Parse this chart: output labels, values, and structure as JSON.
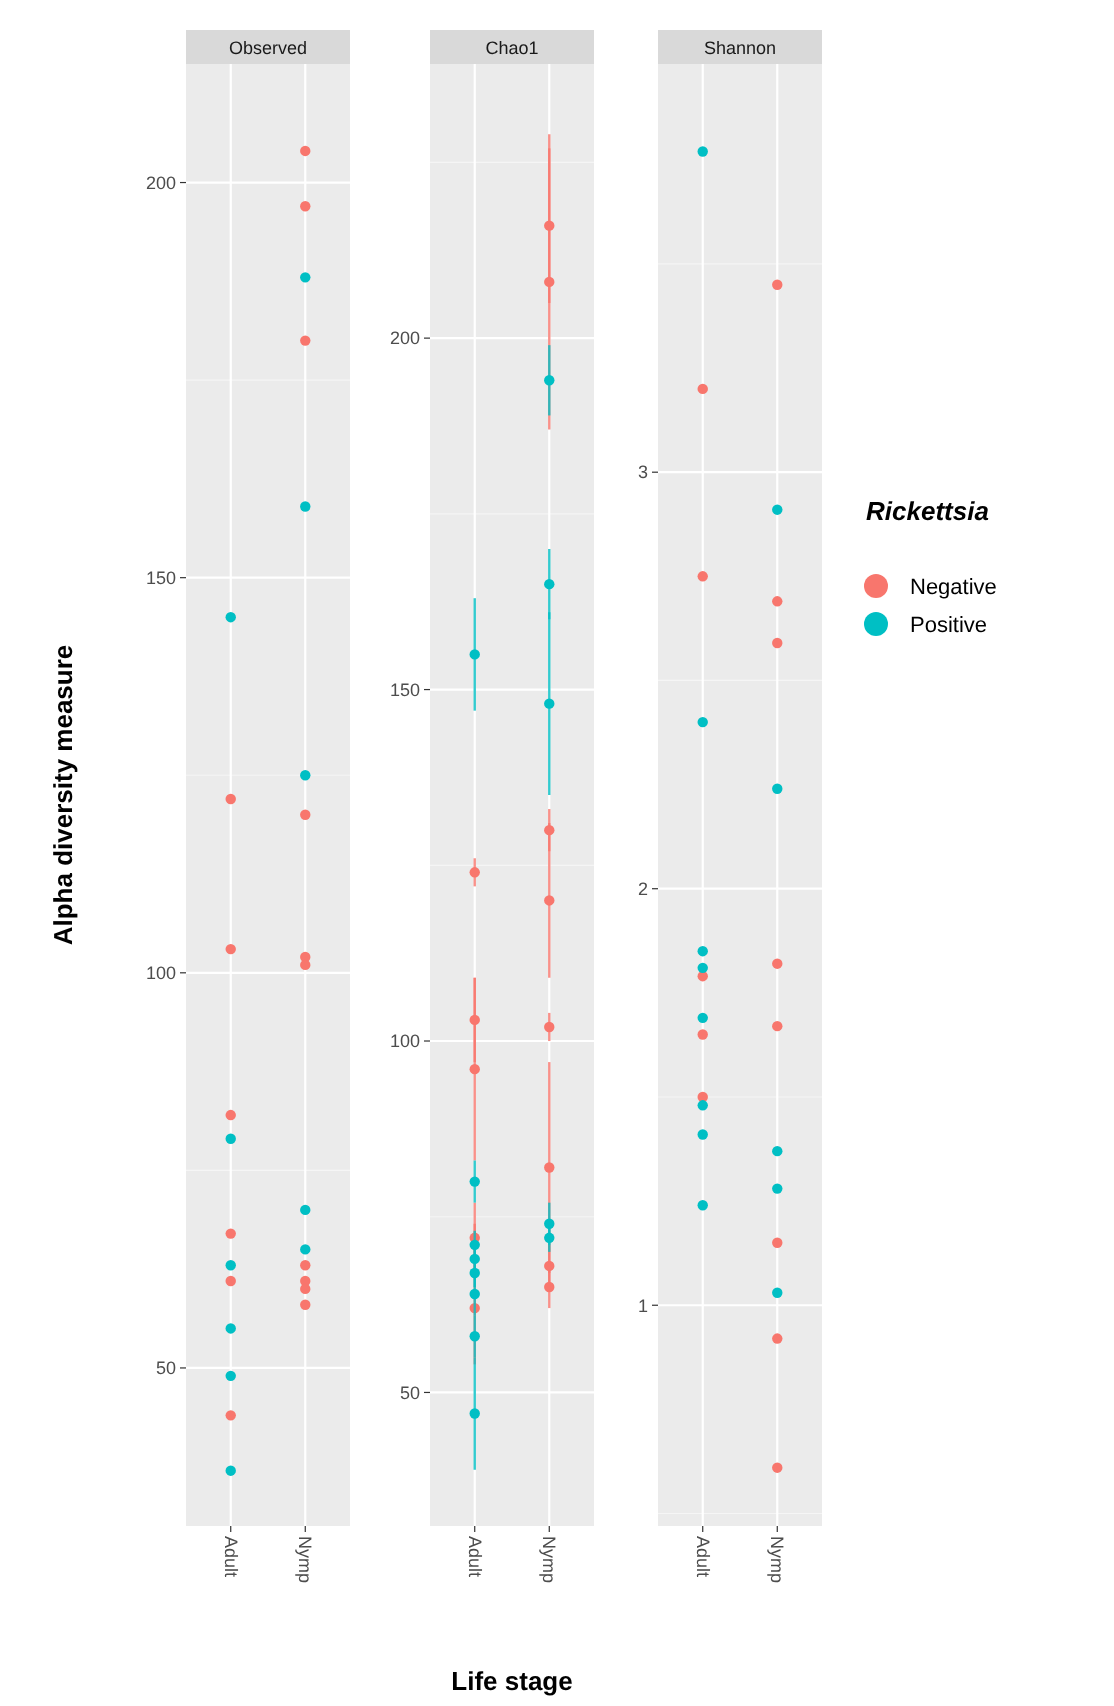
{
  "chart_data": [
    {
      "type": "scatter",
      "title": "Observed",
      "ylabel": "Alpha diversity measure",
      "categories": [
        "Adult",
        "Nymp"
      ],
      "ylim": [
        30,
        215
      ],
      "yticks": [
        50,
        100,
        150,
        200
      ],
      "grid": true,
      "marker": "circle",
      "legend": false,
      "series": [
        {
          "color": "#f8766d",
          "x": [
            "Adult",
            "Adult",
            "Adult",
            "Adult",
            "Adult",
            "Adult",
            "Nymp",
            "Nymp",
            "Nymp",
            "Nymp",
            "Nymp",
            "Nymp",
            "Nymp",
            "Nymp",
            "Nymp",
            "Nymp"
          ],
          "values": [
            122,
            103,
            82,
            67,
            61,
            44,
            204,
            197,
            180,
            120,
            102,
            101,
            63,
            61,
            58,
            60
          ]
        },
        {
          "color": "#00bfc4",
          "x": [
            "Adult",
            "Adult",
            "Adult",
            "Adult",
            "Adult",
            "Adult",
            "Nymp",
            "Nymp",
            "Nymp",
            "Nymp",
            "Nymp"
          ],
          "values": [
            145,
            79,
            63,
            55,
            49,
            37,
            188,
            159,
            125,
            70,
            65
          ]
        }
      ]
    },
    {
      "type": "scatter",
      "title": "Chao1",
      "xlabel": "Life stage",
      "categories": [
        "Adult",
        "Nymp"
      ],
      "ylim": [
        31,
        239
      ],
      "yticks": [
        50,
        100,
        150,
        200
      ],
      "grid": true,
      "marker": "circle",
      "legend": false,
      "series": [
        {
          "color": "#f8766d",
          "x": [
            "Adult",
            "Adult",
            "Adult",
            "Adult",
            "Adult",
            "Nymp",
            "Nymp",
            "Nymp",
            "Nymp",
            "Nymp",
            "Nymp",
            "Nymp",
            "Nymp"
          ],
          "values": [
            124,
            103,
            96,
            72,
            62,
            216,
            208,
            130,
            120,
            102,
            82,
            68,
            65
          ],
          "errors": [
            2,
            6,
            13,
            5,
            [
              54,
              74
            ],
            11,
            21,
            3,
            11,
            2,
            15,
            3,
            3
          ]
        },
        {
          "color": "#00bfc4",
          "x": [
            "Adult",
            "Adult",
            "Adult",
            "Adult",
            "Adult",
            "Adult",
            "Adult",
            "Adult",
            "Nymp",
            "Nymp",
            "Nymp",
            "Nymp",
            "Nymp"
          ],
          "values": [
            155,
            80,
            71,
            69,
            67,
            64,
            58,
            47,
            194,
            165,
            148,
            74,
            72
          ],
          "errors": [
            8,
            3,
            2,
            2,
            2,
            3,
            3,
            8,
            5,
            5,
            13,
            3,
            2
          ]
        }
      ]
    },
    {
      "type": "scatter",
      "title": "Shannon",
      "legend_title": "Rickettsia",
      "categories": [
        "Adult",
        "Nymp"
      ],
      "ylim": [
        0.47,
        3.98
      ],
      "yticks": [
        1,
        2,
        3
      ],
      "grid": true,
      "marker": "circle",
      "legend": "right",
      "series": [
        {
          "name": "Negative",
          "color": "#f8766d",
          "x": [
            "Adult",
            "Adult",
            "Adult",
            "Adult",
            "Adult",
            "Nymp",
            "Nymp",
            "Nymp",
            "Nymp",
            "Nymp",
            "Nymp",
            "Nymp",
            "Nymp"
          ],
          "values": [
            3.2,
            2.75,
            1.79,
            1.65,
            1.5,
            3.45,
            2.69,
            2.59,
            1.82,
            1.67,
            1.15,
            0.92,
            0.61
          ]
        },
        {
          "name": "Positive",
          "color": "#00bfc4",
          "x": [
            "Adult",
            "Adult",
            "Adult",
            "Adult",
            "Adult",
            "Adult",
            "Adult",
            "Adult",
            "Nymp",
            "Nymp",
            "Nymp",
            "Nymp",
            "Nymp"
          ],
          "values": [
            3.77,
            2.4,
            1.85,
            1.81,
            1.69,
            1.48,
            1.41,
            1.24,
            2.91,
            2.24,
            1.37,
            1.28,
            1.03
          ]
        }
      ]
    }
  ]
}
